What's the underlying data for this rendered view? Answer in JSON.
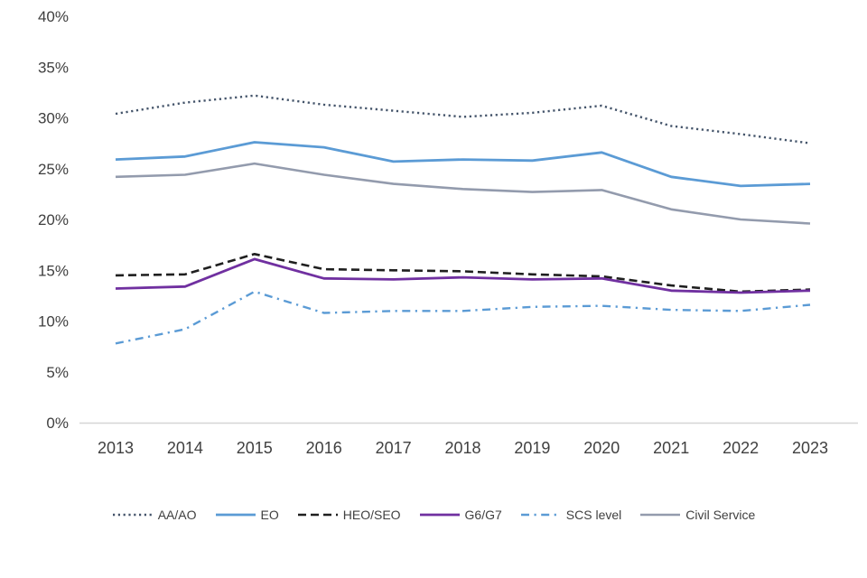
{
  "chart_data": {
    "type": "line",
    "title": "",
    "xlabel": "",
    "ylabel": "",
    "grid": false,
    "legend_position": "bottom",
    "ylim": [
      0,
      40
    ],
    "y_tick_values": [
      0,
      5,
      10,
      15,
      20,
      25,
      30,
      35,
      40
    ],
    "y_tick_labels": [
      "0%",
      "5%",
      "10%",
      "15%",
      "20%",
      "25%",
      "30%",
      "35%",
      "40%"
    ],
    "categories": [
      "2013",
      "2014",
      "2015",
      "2016",
      "2017",
      "2018",
      "2019",
      "2020",
      "2021",
      "2022",
      "2023"
    ],
    "axis_color": "#d6d6d6",
    "series": [
      {
        "name": "AA/AO",
        "color": "#44546a",
        "dash": "2.2 3.6",
        "width": 2.4,
        "values": [
          30.4,
          31.5,
          32.2,
          31.3,
          30.7,
          30.1,
          30.5,
          31.2,
          29.2,
          28.4,
          27.5
        ]
      },
      {
        "name": "EO",
        "color": "#5b9bd5",
        "dash": "",
        "width": 2.8,
        "values": [
          25.9,
          26.2,
          27.6,
          27.1,
          25.7,
          25.9,
          25.8,
          26.6,
          24.2,
          23.3,
          23.5
        ]
      },
      {
        "name": "HEO/SEO",
        "color": "#1f1f1f",
        "dash": "9 5",
        "width": 2.6,
        "values": [
          14.5,
          14.6,
          16.6,
          15.1,
          15.0,
          14.9,
          14.6,
          14.4,
          13.5,
          12.9,
          13.1
        ]
      },
      {
        "name": "G6/G7",
        "color": "#7030a0",
        "dash": "",
        "width": 2.8,
        "values": [
          13.2,
          13.4,
          16.1,
          14.2,
          14.1,
          14.3,
          14.1,
          14.2,
          13.0,
          12.8,
          13.0
        ]
      },
      {
        "name": "SCS level",
        "color": "#5b9bd5",
        "dash": "9 5.5 2.2 5.5",
        "width": 2.4,
        "values": [
          7.8,
          9.2,
          12.9,
          10.8,
          11.0,
          11.0,
          11.4,
          11.5,
          11.1,
          11.0,
          11.6
        ]
      },
      {
        "name": "Civil Service",
        "color": "#939bad",
        "dash": "",
        "width": 2.6,
        "values": [
          24.2,
          24.4,
          25.5,
          24.4,
          23.5,
          23.0,
          22.7,
          22.9,
          21.0,
          20.0,
          19.6
        ]
      }
    ]
  }
}
